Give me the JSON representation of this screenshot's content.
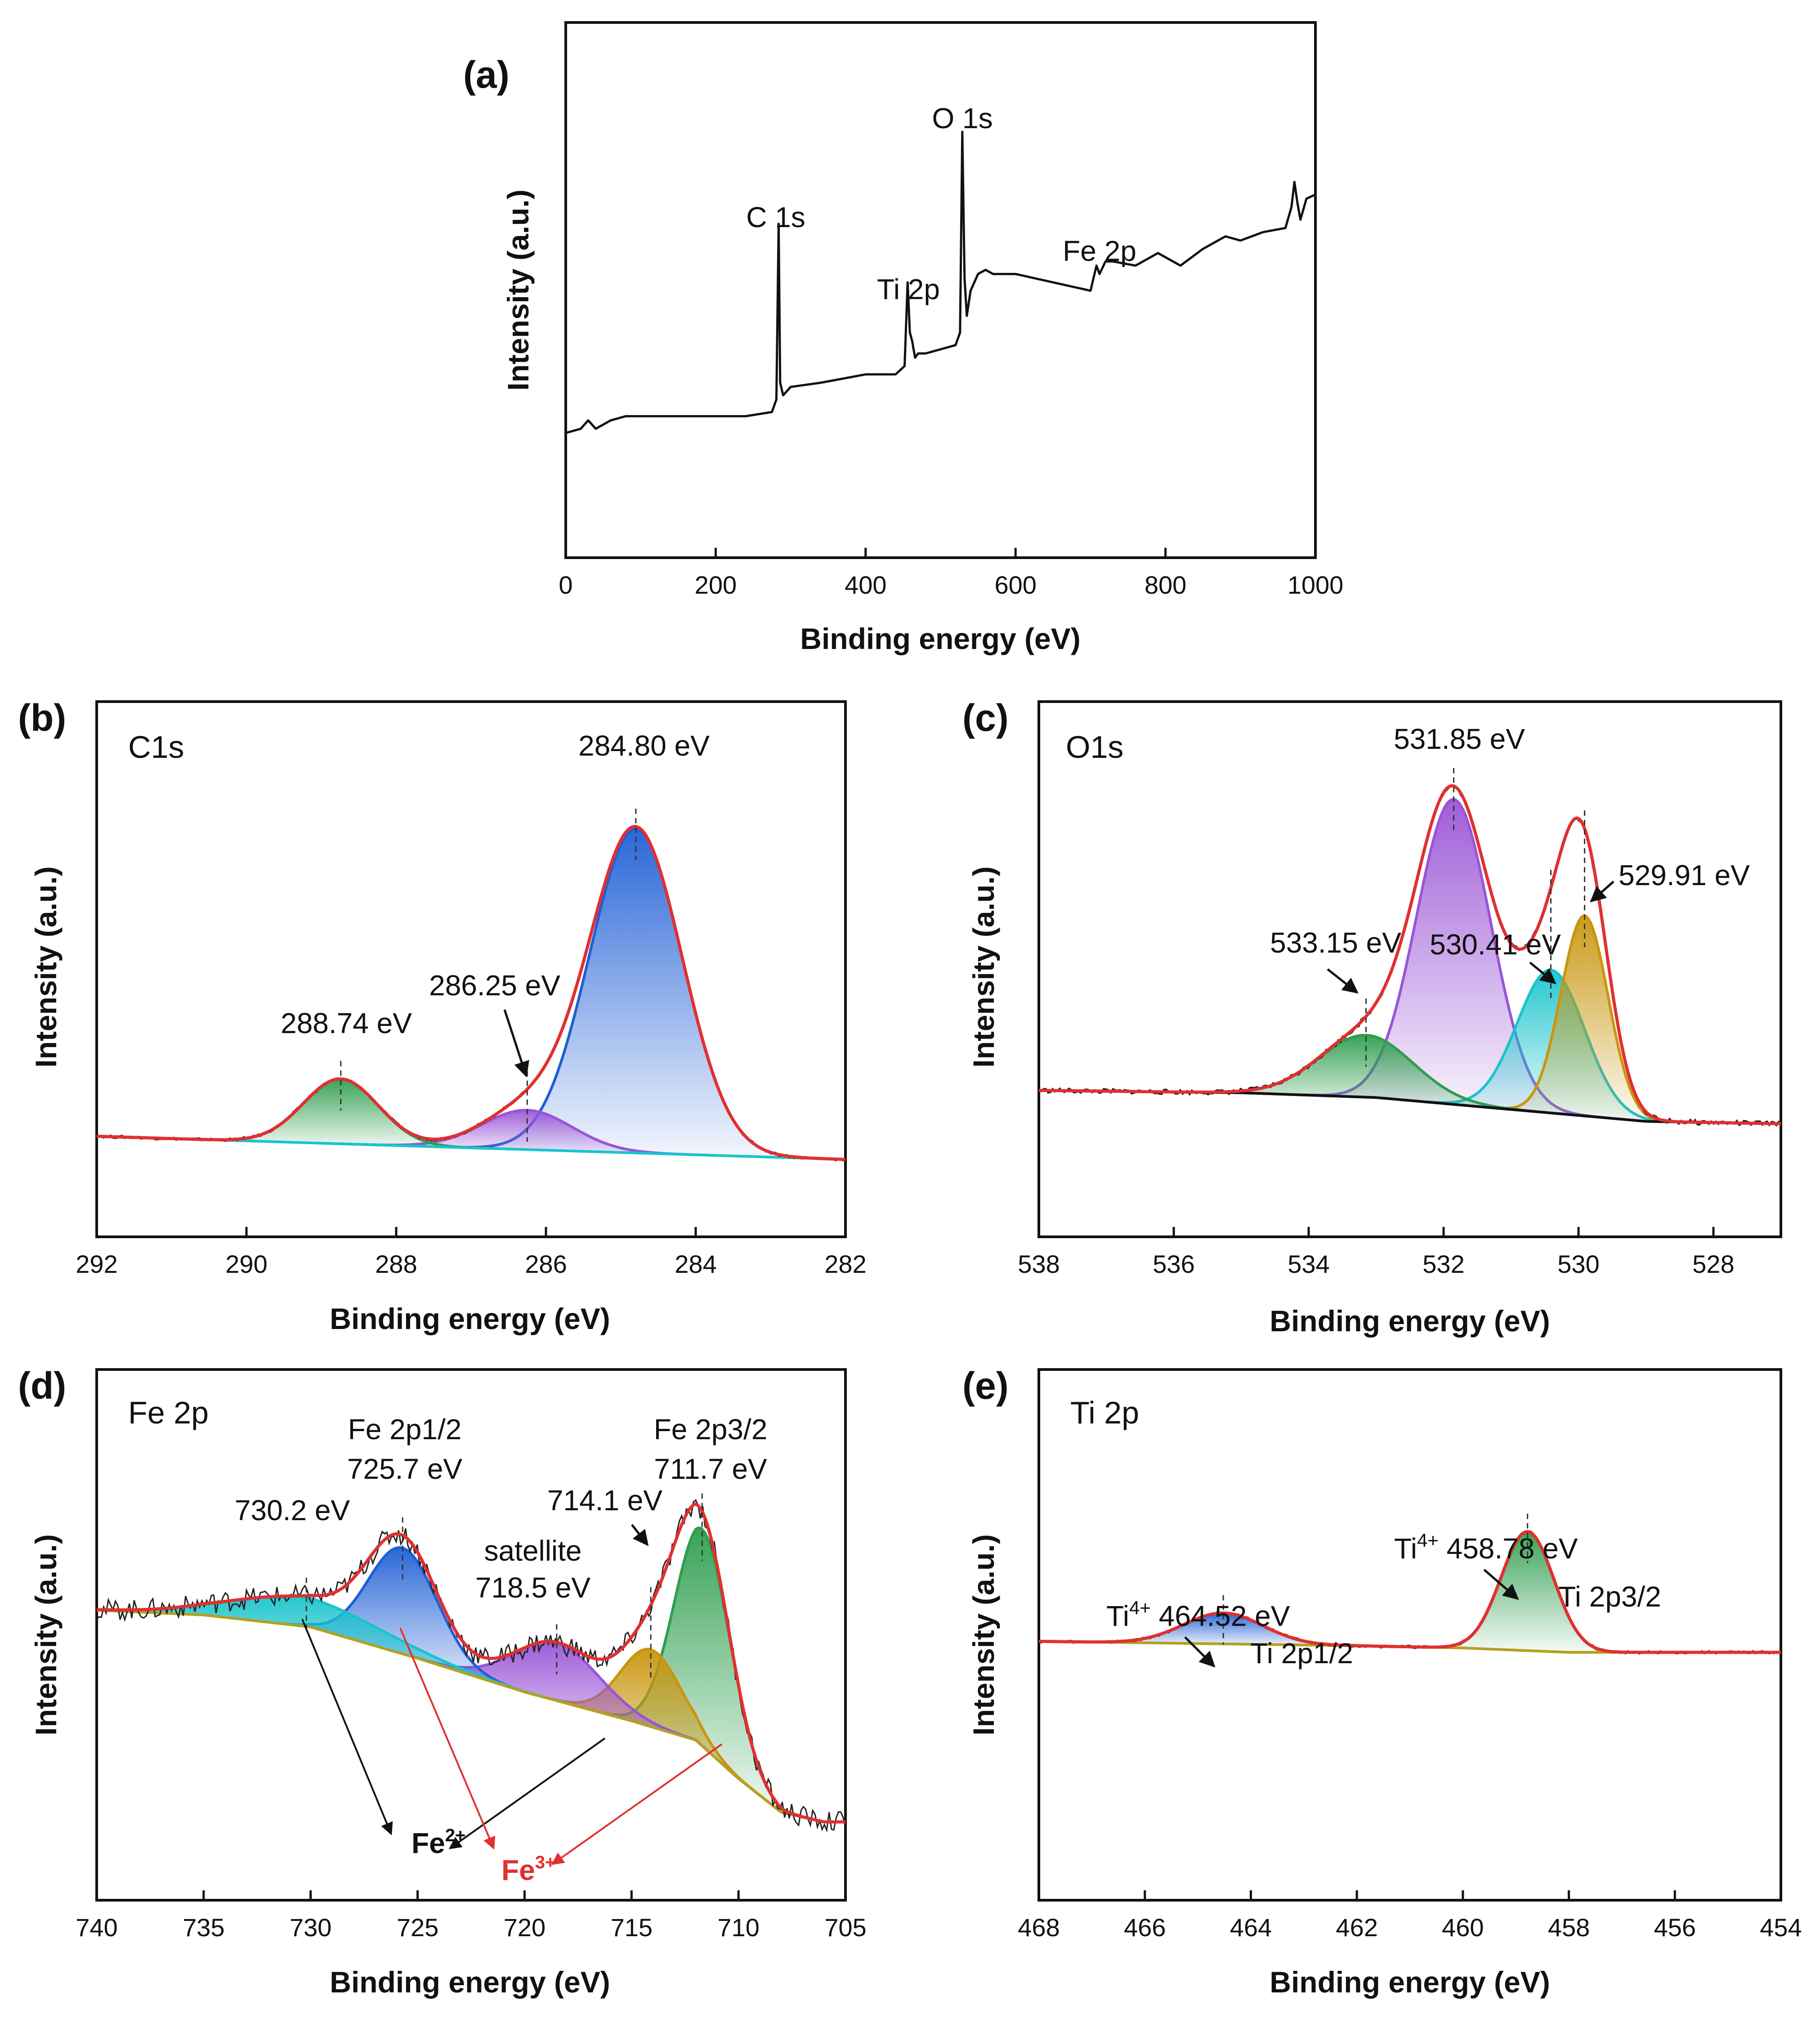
{
  "chart_data": [
    {
      "id": "a",
      "type": "line",
      "panel": "(a)",
      "title": "",
      "xlabel": "Binding energy (eV)",
      "ylabel": "Intensity (a.u.)",
      "xlim": [
        0,
        1000
      ],
      "x_reversed": false,
      "ylim": [
        0,
        100
      ],
      "xticks": [
        0,
        200,
        400,
        600,
        800,
        1000
      ],
      "series": [
        {
          "name": "survey",
          "color": "#111111",
          "x": [
            0,
            20,
            30,
            40,
            60,
            80,
            120,
            160,
            200,
            240,
            275,
            281,
            284,
            286,
            290,
            300,
            340,
            400,
            440,
            452,
            456,
            459,
            462,
            466,
            470,
            480,
            520,
            526,
            529,
            532,
            535,
            540,
            550,
            560,
            570,
            600,
            650,
            700,
            708,
            712,
            720,
            730,
            760,
            790,
            820,
            850,
            880,
            900,
            930,
            960,
            968,
            972,
            976,
            980,
            988,
            1000
          ],
          "values": [
            18,
            19,
            21,
            19,
            21,
            22,
            22,
            22,
            22,
            22,
            23,
            26,
            68,
            30,
            27,
            29,
            30,
            32,
            32,
            34,
            54,
            42,
            40,
            36,
            37,
            37,
            39,
            42,
            90,
            55,
            46,
            52,
            56,
            57,
            56,
            56,
            54,
            52,
            58,
            56,
            59,
            59,
            58,
            61,
            58,
            62,
            65,
            64,
            66,
            67,
            72,
            78,
            73,
            69,
            74,
            75
          ]
        }
      ],
      "annotations": [
        {
          "text": "C 1s",
          "x": 284,
          "y": 68
        },
        {
          "text": "Ti 2p",
          "x": 458,
          "y": 54
        },
        {
          "text": "O 1s",
          "x": 529,
          "y": 90
        },
        {
          "text": "Fe 2p",
          "x": 712,
          "y": 62
        }
      ]
    },
    {
      "id": "b",
      "type": "line",
      "panel": "(b)",
      "title": "C1s",
      "xlabel": "Binding energy (eV)",
      "ylabel": "Intensity (a.u.)",
      "xlim": [
        292,
        282
      ],
      "x_reversed": true,
      "ylim": [
        0,
        100
      ],
      "xticks": [
        292,
        290,
        288,
        286,
        284,
        282
      ],
      "baseline": {
        "x": [
          292,
          282
        ],
        "values": [
          12,
          7
        ],
        "color": "#19c4cc"
      },
      "peaks": [
        {
          "center": 284.8,
          "height": 70,
          "width": 0.62,
          "color": "#1f5fd6"
        },
        {
          "center": 286.25,
          "height": 8.5,
          "width": 0.6,
          "color": "#9a55d6"
        },
        {
          "center": 288.74,
          "height": 14,
          "width": 0.5,
          "color": "#2e9e4e"
        }
      ],
      "envelope_color": "#e03030",
      "peak_labels": [
        {
          "text": "284.80 eV",
          "x": 284.8
        },
        {
          "text": "286.25 eV",
          "x": 286.25
        },
        {
          "text": "288.74 eV",
          "x": 288.74
        }
      ]
    },
    {
      "id": "c",
      "type": "line",
      "panel": "(c)",
      "title": "O1s",
      "xlabel": "Binding energy (eV)",
      "ylabel": "Intensity (a.u.)",
      "xlim": [
        538,
        527
      ],
      "x_reversed": true,
      "ylim": [
        0,
        100
      ],
      "xticks": [
        538,
        536,
        534,
        532,
        530,
        528
      ],
      "baseline": {
        "x": [
          538,
          535,
          533,
          531,
          529,
          527
        ],
        "values": [
          26,
          25.5,
          24.5,
          22,
          19.5,
          19
        ],
        "color": "#111111"
      },
      "peaks": [
        {
          "center": 531.85,
          "height": 64,
          "width": 0.55,
          "color": "#9a55d6"
        },
        {
          "center": 530.41,
          "height": 30,
          "width": 0.5,
          "color": "#19c4cc"
        },
        {
          "center": 529.91,
          "height": 42,
          "width": 0.35,
          "color": "#c9950e"
        },
        {
          "center": 533.15,
          "height": 13,
          "width": 0.7,
          "color": "#2e9e4e"
        }
      ],
      "envelope_color": "#e03030",
      "peak_labels": [
        {
          "text": "531.85 eV",
          "x": 531.85
        },
        {
          "text": "529.91 eV",
          "x": 529.91
        },
        {
          "text": "533.15 eV",
          "x": 533.15
        },
        {
          "text": "530.41 eV",
          "x": 530.41
        }
      ]
    },
    {
      "id": "d",
      "type": "line",
      "panel": "(d)",
      "title": "Fe 2p",
      "xlabel": "Binding energy (eV)",
      "ylabel": "Intensity (a.u.)",
      "xlim": [
        740,
        705
      ],
      "x_reversed": true,
      "ylim": [
        0,
        100
      ],
      "xticks": [
        740,
        735,
        730,
        725,
        720,
        715,
        710,
        705
      ],
      "baseline": {
        "x": [
          740,
          735,
          730,
          725,
          720,
          715,
          712,
          710,
          708,
          706,
          705
        ],
        "values": [
          57,
          56,
          53.5,
          47,
          40,
          34,
          30,
          22,
          15,
          13,
          13
        ],
        "color": "#b5a01e"
      },
      "peaks": [
        {
          "center": 711.7,
          "height": 45,
          "width": 1.3,
          "color": "#2e9e4e"
        },
        {
          "center": 714.1,
          "height": 16,
          "width": 1.4,
          "color": "#c9950e"
        },
        {
          "center": 718.5,
          "height": 12,
          "width": 2.0,
          "color": "#9a55d6"
        },
        {
          "center": 725.7,
          "height": 22,
          "width": 1.6,
          "color": "#1f5fd6"
        },
        {
          "center": 730.2,
          "height": 6,
          "width": 3.5,
          "color": "#19c4cc"
        }
      ],
      "envelope_color": "#e03030",
      "peak_labels": [
        {
          "text": "Fe 2p1/2",
          "x": 725.7
        },
        {
          "text": "725.7 eV",
          "x": 725.7
        },
        {
          "text": "Fe 2p3/2",
          "x": 711.7
        },
        {
          "text": "711.7 eV",
          "x": 711.7
        },
        {
          "text": "730.2 eV",
          "x": 730.2
        },
        {
          "text": "714.1 eV",
          "x": 714.1
        },
        {
          "text": "satellite",
          "x": 718.5
        },
        {
          "text": "718.5 eV",
          "x": 718.5
        }
      ],
      "ions": {
        "fe2": "Fe",
        "fe2_sup": "2+",
        "fe3": "Fe",
        "fe3_sup": "3+"
      }
    },
    {
      "id": "e",
      "type": "line",
      "panel": "(e)",
      "title": "Ti 2p",
      "xlabel": "Binding energy (eV)",
      "ylabel": "Intensity (a.u.)",
      "xlim": [
        468,
        454
      ],
      "x_reversed": true,
      "ylim": [
        0,
        100
      ],
      "xticks": [
        468,
        466,
        464,
        462,
        460,
        458,
        456,
        454
      ],
      "baseline": {
        "x": [
          468,
          462,
          460,
          458,
          454
        ],
        "values": [
          47,
          46,
          45.5,
          44.5,
          44.5
        ],
        "color": "#b5a01e"
      },
      "peaks": [
        {
          "center": 458.78,
          "height": 27,
          "width": 0.5,
          "color": "#2e9e4e"
        },
        {
          "center": 464.52,
          "height": 7,
          "width": 0.75,
          "color": "#1f5fd6"
        }
      ],
      "envelope_color": "#e03030",
      "peak_labels": [
        {
          "text": "Ti",
          "sup": "4+",
          "value": " 458.78 eV",
          "x": 458.78
        },
        {
          "text": "Ti 2p3/2",
          "x": 458.78
        },
        {
          "text": "Ti",
          "sup": "4+",
          "value": " 464.52 eV",
          "x": 464.52
        },
        {
          "text": "Ti 2p1/2",
          "x": 464.52
        }
      ]
    }
  ]
}
